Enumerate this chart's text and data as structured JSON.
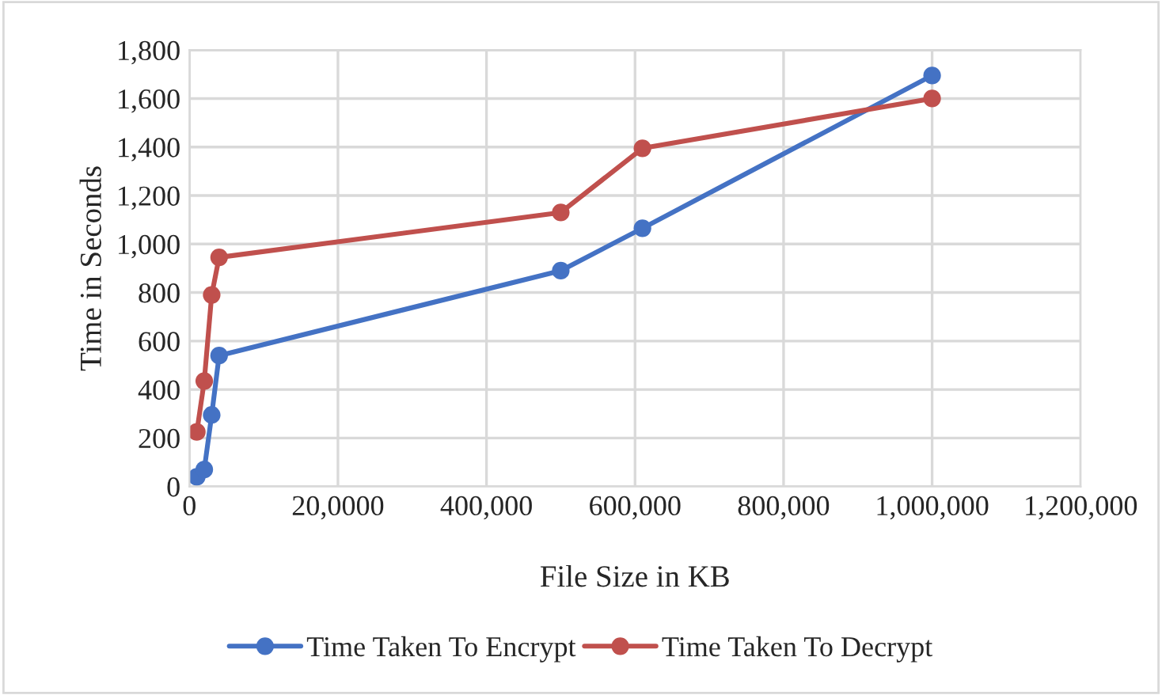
{
  "chart_data": {
    "type": "line",
    "xlabel": "File Size in KB",
    "ylabel": "Time in Seconds",
    "series": [
      {
        "name": "Time Taken To Encrypt",
        "color": "#4472c4",
        "x": [
          10000,
          20000,
          30000,
          40000,
          500000,
          610000,
          1000000
        ],
        "values": [
          40,
          70,
          295,
          540,
          890,
          1065,
          1695
        ]
      },
      {
        "name": "Time Taken To Decrypt",
        "color": "#c0504d",
        "x": [
          10000,
          20000,
          30000,
          40000,
          500000,
          610000,
          1000000
        ],
        "values": [
          225,
          435,
          790,
          945,
          1130,
          1395,
          1600
        ]
      }
    ],
    "xlim": [
      0,
      1200000
    ],
    "xticks": [
      0,
      {
        "value": 200000,
        "label": "20,0000"
      },
      {
        "value": 400000,
        "label": "400,000"
      },
      {
        "value": 600000,
        "label": "600,000"
      },
      {
        "value": 800000,
        "label": "800,000"
      },
      {
        "value": 1000000,
        "label": "1,000,000"
      },
      {
        "value": 1200000,
        "label": "1,200,000"
      }
    ],
    "ylim": [
      0,
      1800
    ],
    "yticks": [
      0,
      200,
      400,
      600,
      800,
      {
        "value": 1000,
        "label": "1,000"
      },
      {
        "value": 1200,
        "label": "1,200"
      },
      {
        "value": 1400,
        "label": "1,400"
      },
      {
        "value": 1600,
        "label": "1,600"
      },
      {
        "value": 1800,
        "label": "1,800"
      }
    ],
    "grid": true,
    "legend": "bottom",
    "marker": "circle",
    "line_style": "solid"
  }
}
